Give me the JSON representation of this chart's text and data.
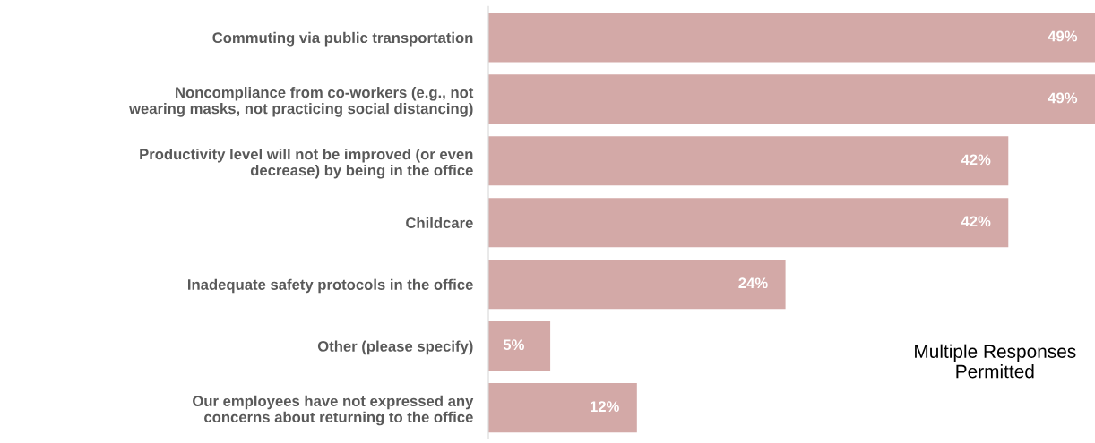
{
  "chart_data": {
    "type": "bar",
    "orientation": "horizontal",
    "categories": [
      "Commuting via public transportation",
      "Noncompliance from co-workers (e.g., not\nwearing masks, not practicing social distancing)",
      "Productivity level will not be improved (or even\ndecrease) by being in the office",
      "Childcare",
      "Inadequate safety protocols in the office",
      "Other (please specify)",
      "Our employees have not expressed any\nconcerns about returning to the office"
    ],
    "values": [
      49,
      49,
      42,
      42,
      24,
      5,
      12
    ],
    "color": "#d3a9a7",
    "data_labels": true,
    "value_labels": [
      "49%",
      "49%",
      "42%",
      "42%",
      "24%",
      "5%",
      "12%"
    ],
    "annotations": [
      "Multiple Responses\nPermitted"
    ],
    "grid": false,
    "legend": false
  }
}
